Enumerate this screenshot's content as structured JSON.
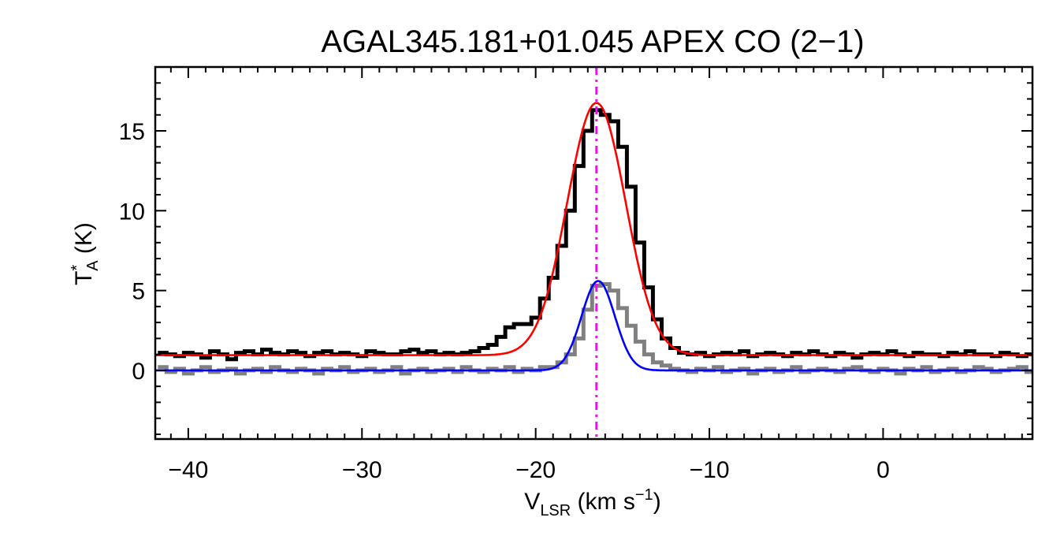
{
  "chart_data": {
    "type": "line",
    "title": "AGAL345.181+01.045  APEX CO (2−1)",
    "xlabel": {
      "main": "V",
      "sub": "LSR",
      "rest": " (km s",
      "sup": "−1",
      "end": ")"
    },
    "ylabel": {
      "main": "T",
      "sup": "*",
      "sub": "A",
      "rest": " (K)"
    },
    "xlim": [
      -41.9,
      8.6
    ],
    "ylim": [
      -4.3,
      19
    ],
    "x_ticks": [
      -40,
      -30,
      -20,
      -10,
      0
    ],
    "x_tick_labels": [
      "−40",
      "−30",
      "−20",
      "−10",
      "0"
    ],
    "y_ticks": [
      0,
      5,
      10,
      15
    ],
    "y_tick_labels": [
      "0",
      "5",
      "10",
      "15"
    ],
    "grid": false,
    "x": [
      -41.5,
      -41,
      -40.5,
      -40,
      -39.5,
      -39,
      -38.5,
      -38,
      -37.5,
      -37,
      -36.5,
      -36,
      -35.5,
      -35,
      -34.5,
      -34,
      -33.5,
      -33,
      -32.5,
      -32,
      -31.5,
      -31,
      -30.5,
      -30,
      -29.5,
      -29,
      -28.5,
      -28,
      -27.5,
      -27,
      -26.5,
      -26,
      -25.5,
      -25,
      -24.5,
      -24,
      -23.5,
      -23,
      -22.5,
      -22,
      -21.5,
      -21,
      -20.5,
      -20,
      -19.5,
      -19,
      -18.5,
      -18,
      -17.5,
      -17,
      -16.5,
      -16,
      -15.5,
      -15,
      -14.5,
      -14,
      -13.5,
      -13,
      -12.5,
      -12,
      -11.5,
      -11,
      -10.5,
      -10,
      -9.5,
      -9,
      -8.5,
      -8,
      -7.5,
      -7,
      -6.5,
      -6,
      -5.5,
      -5,
      -4.5,
      -4,
      -3.5,
      -3,
      -2.5,
      -2,
      -1.5,
      -1,
      -0.5,
      0,
      0.5,
      1,
      1.5,
      2,
      2.5,
      3,
      3.5,
      4,
      4.5,
      5,
      5.5,
      6,
      6.5,
      7,
      7.5,
      8,
      8.5
    ],
    "series": [
      {
        "color": "#000000",
        "style": "histogram",
        "values": [
          1.1,
          1.0,
          0.9,
          1.1,
          1.0,
          0.8,
          1.2,
          1.0,
          0.7,
          1.1,
          1.2,
          1.0,
          1.3,
          1.1,
          1.0,
          1.2,
          1.1,
          0.9,
          1.1,
          1.2,
          1.0,
          1.1,
          1.0,
          0.9,
          1.2,
          1.1,
          1.0,
          1.0,
          1.2,
          1.3,
          1.1,
          1.2,
          1.0,
          1.1,
          1.0,
          1.1,
          1.2,
          1.4,
          1.6,
          2.1,
          2.7,
          2.9,
          2.9,
          3.3,
          4.5,
          5.8,
          7.8,
          10.0,
          12.8,
          15.0,
          16.3,
          16.0,
          15.6,
          14.0,
          11.5,
          8.0,
          5.2,
          3.2,
          2.0,
          1.4,
          1.1,
          1.0,
          1.1,
          0.9,
          1.0,
          1.1,
          1.0,
          1.2,
          0.9,
          1.0,
          1.1,
          1.0,
          0.9,
          1.1,
          1.0,
          1.2,
          1.0,
          0.9,
          1.1,
          1.0,
          0.8,
          1.0,
          1.1,
          1.0,
          1.2,
          1.0,
          0.9,
          1.1,
          1.0,
          1.0,
          0.9,
          1.1,
          1.0,
          1.2,
          1.0,
          1.0,
          0.9,
          1.1,
          1.0,
          0.9,
          1.0
        ]
      },
      {
        "color": "#808080",
        "style": "histogram",
        "values": [
          0.2,
          -0.1,
          0.1,
          -0.2,
          0.0,
          0.2,
          -0.1,
          0.0,
          0.1,
          -0.2,
          0.0,
          0.1,
          -0.1,
          0.2,
          0.0,
          -0.1,
          0.1,
          0.0,
          -0.2,
          0.1,
          0.0,
          0.2,
          -0.1,
          0.0,
          0.1,
          -0.1,
          0.0,
          0.2,
          -0.2,
          0.0,
          0.1,
          -0.1,
          0.0,
          0.1,
          -0.1,
          0.2,
          0.0,
          -0.1,
          0.1,
          0.0,
          0.2,
          -0.1,
          0.1,
          0.0,
          0.2,
          0.2,
          0.5,
          1.0,
          2.0,
          3.8,
          5.3,
          5.4,
          5.0,
          3.9,
          2.8,
          1.8,
          1.0,
          0.5,
          0.3,
          0.1,
          0.0,
          -0.1,
          0.1,
          0.0,
          0.2,
          -0.1,
          0.0,
          0.1,
          -0.2,
          0.0,
          0.1,
          -0.1,
          0.0,
          0.2,
          -0.1,
          0.0,
          0.1,
          0.0,
          -0.1,
          0.1,
          0.2,
          0.0,
          -0.1,
          0.1,
          0.0,
          -0.2,
          0.1,
          0.0,
          0.2,
          -0.1,
          0.0,
          0.1,
          -0.1,
          0.0,
          0.2,
          0.1,
          -0.1,
          0.0,
          0.1,
          0.2,
          -0.1
        ]
      }
    ],
    "fits": [
      {
        "color": "#ff0000",
        "model": "gaussian",
        "amplitude": 15.8,
        "center": -16.5,
        "sigma": 1.68,
        "offset": 0.95
      },
      {
        "color": "#0000ff",
        "model": "gaussian",
        "amplitude": 5.6,
        "center": -16.4,
        "sigma": 0.96,
        "offset": 0.0
      }
    ],
    "vline": {
      "x": -16.5,
      "color": "#ff00ff",
      "style": "dash-dot"
    }
  }
}
